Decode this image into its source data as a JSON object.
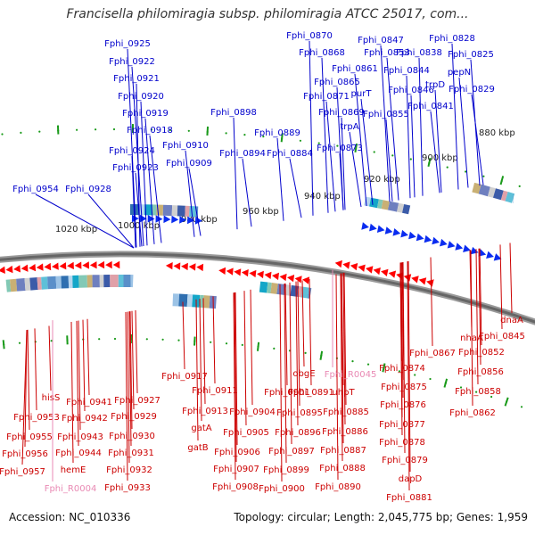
{
  "title": "Francisella philomiragia subsp. philomiragia ATCC 25017, com...",
  "footer": {
    "accession": "Accession: NC_010336",
    "summary": "Topology: circular; Length: 2,045,775 bp; Genes: 1,959"
  },
  "colors": {
    "forward_label": "#0000cc",
    "reverse_label": "#cc0000",
    "rna_label": "#e98ab4",
    "backbone": "#666666",
    "tick": "#1a9a1a"
  },
  "scale_labels": [
    "1020 kbp",
    "1000 kbp",
    "980 kbp",
    "960 kbp",
    "940 kbp",
    "920 kbp",
    "900 kbp",
    "880 kbp"
  ],
  "forward_genes": [
    "Fphi_0954",
    "Fphi_0928",
    "Fphi_0925",
    "Fphi_0922",
    "Fphi_0921",
    "Fphi_0920",
    "Fphi_0919",
    "Fphi_0918",
    "Fphi_0924",
    "Fphi_0923",
    "Fphi_0910",
    "Fphi_0909",
    "Fphi_0898",
    "Fphi_0889",
    "Fphi_0894",
    "Fphi_0884",
    "Fphi_0870",
    "Fphi_0868",
    "Fphi_0847",
    "Fphi_0853",
    "Fphi_0838",
    "Fphi_0828",
    "Fphi_0825",
    "Fphi_0861",
    "Fphi_0844",
    "Fphi_0865",
    "pepN",
    "purT",
    "Fphi_0846",
    "trpD",
    "Fphi_0871",
    "Fphi_0829",
    "Fphi_0869",
    "Fphi_0855",
    "Fphi_0841",
    "trpA",
    "Fphi_0873"
  ],
  "reverse_genes": [
    "hisS",
    "Fphi_0941",
    "Fphi_0927",
    "Fphi_0953",
    "Fphi_0942",
    "Fphi_0929",
    "Fphi_0955",
    "Fphi_0943",
    "Fphi_0930",
    "Fphi_0956",
    "Fphi_0944",
    "Fphi_0931",
    "Fphi_0957",
    "hemE",
    "Fphi_0932",
    "Fphi_0933",
    "Fphi_0917",
    "Fphi_0911",
    "Fphi_0913",
    "gatA",
    "gatB",
    "Fphi_0901",
    "Fphi_0904",
    "Fphi_0905",
    "Fphi_0906",
    "Fphi_0907",
    "Fphi_0908",
    "obgE",
    "Fphi_0891",
    "Fphi_0895",
    "Fphi_0896",
    "Fphi_0897",
    "Fphi_0899",
    "Fphi_0900",
    "uhpT",
    "Fphi_0885",
    "Fphi_0886",
    "Fphi_0887",
    "Fphi_0888",
    "Fphi_0890",
    "Fphi_0867",
    "Fphi_0874",
    "Fphi_0875",
    "Fphi_0876",
    "Fphi_0877",
    "Fphi_0878",
    "Fphi_0879",
    "dapD",
    "Fphi_0881",
    "nhaA",
    "Fphi_0852",
    "Fphi_0856",
    "Fphi_0858",
    "Fphi_0862",
    "dnaA",
    "Fphi_0845"
  ],
  "rna_genes": [
    "Fphi_R0045",
    "Fphi_R0004"
  ]
}
